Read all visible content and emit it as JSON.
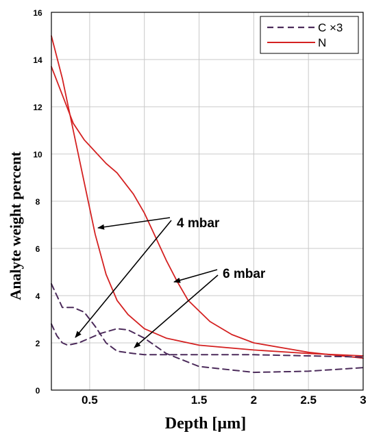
{
  "chart_data": {
    "type": "line",
    "xlabel": "Depth [µm]",
    "ylabel": "Analyte weight percent",
    "xlim": [
      0.15,
      3.0
    ],
    "ylim": [
      0,
      16
    ],
    "x_ticks": [
      {
        "value": 0.5,
        "label": "0.5"
      },
      {
        "value": 1.0,
        "label": ""
      },
      {
        "value": 1.5,
        "label": "1.5"
      },
      {
        "value": 2.0,
        "label": "2"
      },
      {
        "value": 2.5,
        "label": "2.5"
      },
      {
        "value": 3.0,
        "label": "3"
      }
    ],
    "y_ticks": [
      0,
      2,
      4,
      6,
      8,
      10,
      12,
      14,
      16
    ],
    "grid": true,
    "legend_position": "top-right",
    "legend": [
      {
        "label": "C ×3",
        "color": "#4b2a5a",
        "style": "dashed"
      },
      {
        "label": "N",
        "color": "#d42020",
        "style": "solid"
      }
    ],
    "series": [
      {
        "element": "N",
        "pressure": "4 mbar",
        "color": "#d42020",
        "style": "solid",
        "x": [
          0.15,
          0.25,
          0.35,
          0.45,
          0.55,
          0.65,
          0.75,
          0.85,
          1.0,
          1.2,
          1.5,
          2.0,
          2.5,
          3.0
        ],
        "y": [
          15.0,
          13.2,
          11.0,
          8.8,
          6.6,
          4.9,
          3.8,
          3.2,
          2.6,
          2.2,
          1.9,
          1.7,
          1.55,
          1.45
        ]
      },
      {
        "element": "N",
        "pressure": "6 mbar",
        "color": "#d42020",
        "style": "solid",
        "x": [
          0.15,
          0.25,
          0.35,
          0.45,
          0.55,
          0.65,
          0.75,
          0.9,
          1.0,
          1.1,
          1.2,
          1.3,
          1.4,
          1.6,
          1.8,
          2.0,
          2.5,
          3.0
        ],
        "y": [
          13.7,
          12.5,
          11.3,
          10.6,
          10.1,
          9.6,
          9.2,
          8.3,
          7.5,
          6.5,
          5.5,
          4.6,
          3.8,
          2.9,
          2.35,
          2.0,
          1.6,
          1.35
        ]
      },
      {
        "element": "C ×3",
        "pressure": "4 mbar",
        "color": "#4b2a5a",
        "style": "dashed",
        "x": [
          0.15,
          0.2,
          0.25,
          0.3,
          0.4,
          0.5,
          0.6,
          0.75,
          0.85,
          1.0,
          1.2,
          1.5,
          2.0,
          2.5,
          3.0
        ],
        "y": [
          2.8,
          2.3,
          2.0,
          1.9,
          2.0,
          2.2,
          2.4,
          2.6,
          2.55,
          2.2,
          1.55,
          1.0,
          0.75,
          0.8,
          0.95
        ]
      },
      {
        "element": "C ×3",
        "pressure": "6 mbar",
        "color": "#4b2a5a",
        "style": "dashed",
        "x": [
          0.15,
          0.2,
          0.25,
          0.35,
          0.45,
          0.55,
          0.65,
          0.75,
          0.9,
          1.0,
          1.2,
          1.5,
          2.0,
          2.5,
          3.0
        ],
        "y": [
          4.5,
          4.0,
          3.5,
          3.5,
          3.3,
          2.7,
          2.0,
          1.65,
          1.55,
          1.5,
          1.5,
          1.5,
          1.5,
          1.45,
          1.4
        ]
      }
    ],
    "annotations": [
      {
        "text": "4 mbar",
        "points_to": [
          "N 4 mbar",
          "C ×3 4 mbar"
        ]
      },
      {
        "text": "6 mbar",
        "points_to": [
          "N 6 mbar",
          "C ×3 6 mbar"
        ]
      }
    ]
  }
}
